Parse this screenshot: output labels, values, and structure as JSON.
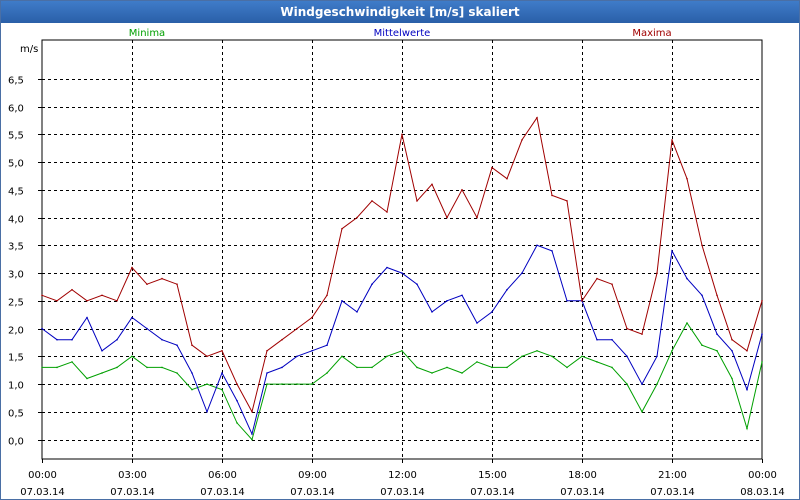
{
  "window": {
    "title": "Windgeschwindigkeit [m/s] skaliert"
  },
  "chart_data": {
    "type": "line",
    "title": "Windgeschwindigkeit [m/s] skaliert",
    "ylabel": "m/s",
    "xlabel": "",
    "ylim": [
      -0.35,
      7.2
    ],
    "xlim": [
      0,
      24
    ],
    "yticks": [
      0.0,
      0.5,
      1.0,
      1.5,
      2.0,
      2.5,
      3.0,
      3.5,
      4.0,
      4.5,
      5.0,
      5.5,
      6.0,
      6.5
    ],
    "ytick_labels": [
      "0,0",
      "0,5",
      "1,0",
      "1,5",
      "2,0",
      "2,5",
      "3,0",
      "3,5",
      "4,0",
      "4,5",
      "5,0",
      "5,5",
      "6,0",
      "6,5"
    ],
    "xticks": [
      0,
      3,
      6,
      9,
      12,
      15,
      18,
      21,
      24
    ],
    "xtick_labels": [
      {
        "time": "00:00",
        "date": "07.03.14"
      },
      {
        "time": "03:00",
        "date": "07.03.14"
      },
      {
        "time": "06:00",
        "date": "07.03.14"
      },
      {
        "time": "09:00",
        "date": "07.03.14"
      },
      {
        "time": "12:00",
        "date": "07.03.14"
      },
      {
        "time": "15:00",
        "date": "07.03.14"
      },
      {
        "time": "18:00",
        "date": "07.03.14"
      },
      {
        "time": "21:00",
        "date": "07.03.14"
      },
      {
        "time": "00:00",
        "date": "08.03.14"
      }
    ],
    "grid": true,
    "legend": [
      "Minima",
      "Mittelwerte",
      "Maxima"
    ],
    "x": [
      0,
      0.5,
      1,
      1.5,
      2,
      2.5,
      3,
      3.5,
      4,
      4.5,
      5,
      5.5,
      6,
      6.5,
      7,
      7.5,
      8,
      8.5,
      9,
      9.5,
      10,
      10.5,
      11,
      11.5,
      12,
      12.5,
      13,
      13.5,
      14,
      14.5,
      15,
      15.5,
      16,
      16.5,
      17,
      17.5,
      18,
      18.5,
      19,
      19.5,
      20,
      20.5,
      21,
      21.5,
      22,
      22.5,
      23,
      23.5,
      24
    ],
    "series": [
      {
        "name": "Minima",
        "color": "#00a000",
        "values": [
          1.3,
          1.3,
          1.4,
          1.1,
          1.2,
          1.3,
          1.5,
          1.3,
          1.3,
          1.2,
          0.9,
          1.0,
          0.9,
          0.3,
          0.0,
          1.0,
          1.0,
          1.0,
          1.0,
          1.2,
          1.5,
          1.3,
          1.3,
          1.5,
          1.6,
          1.3,
          1.2,
          1.3,
          1.2,
          1.4,
          1.3,
          1.3,
          1.5,
          1.6,
          1.5,
          1.3,
          1.5,
          1.4,
          1.3,
          1.0,
          0.5,
          1.0,
          1.6,
          2.1,
          1.7,
          1.6,
          1.1,
          0.2,
          1.4
        ]
      },
      {
        "name": "Mittelwerte",
        "color": "#0000c0",
        "values": [
          2.0,
          1.8,
          1.8,
          2.2,
          1.6,
          1.8,
          2.2,
          2.0,
          1.8,
          1.7,
          1.2,
          0.5,
          1.2,
          0.7,
          0.1,
          1.2,
          1.3,
          1.5,
          1.6,
          1.7,
          2.5,
          2.3,
          2.8,
          3.1,
          3.0,
          2.8,
          2.3,
          2.5,
          2.6,
          2.1,
          2.3,
          2.7,
          3.0,
          3.5,
          3.4,
          2.5,
          2.5,
          1.8,
          1.8,
          1.5,
          1.0,
          1.5,
          3.4,
          2.9,
          2.6,
          1.9,
          1.6,
          0.9,
          1.9
        ]
      },
      {
        "name": "Maxima",
        "color": "#a00000",
        "values": [
          2.6,
          2.5,
          2.7,
          2.5,
          2.6,
          2.5,
          3.1,
          2.8,
          2.9,
          2.8,
          1.7,
          1.5,
          1.6,
          1.0,
          0.5,
          1.6,
          1.8,
          2.0,
          2.2,
          2.6,
          3.8,
          4.0,
          4.3,
          4.1,
          5.5,
          4.3,
          4.6,
          4.0,
          4.5,
          4.0,
          4.9,
          4.7,
          5.4,
          5.8,
          4.4,
          4.3,
          2.5,
          2.9,
          2.8,
          2.0,
          1.9,
          3.0,
          5.4,
          4.7,
          3.5,
          2.6,
          1.8,
          1.6,
          2.5
        ]
      }
    ]
  }
}
